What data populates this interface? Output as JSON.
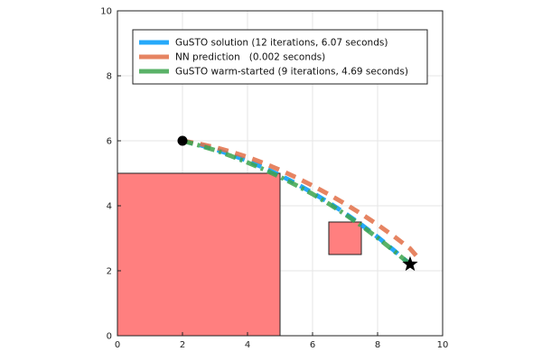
{
  "chart_data": {
    "type": "line",
    "title": "",
    "xlabel": "",
    "ylabel": "",
    "xlim": [
      0,
      10
    ],
    "ylim": [
      0,
      10
    ],
    "xticks": [
      0,
      2,
      4,
      6,
      8,
      10
    ],
    "yticks": [
      0,
      2,
      4,
      6,
      8,
      10
    ],
    "grid": true,
    "legend_position": "top-left",
    "obstacles": [
      {
        "x0": 0,
        "y0": 0,
        "x1": 5,
        "y1": 5,
        "color": "#ff7f7f"
      },
      {
        "x0": 6.5,
        "y0": 2.5,
        "x1": 7.5,
        "y1": 3.5,
        "color": "#ff7f7f"
      }
    ],
    "start": {
      "x": 2,
      "y": 6
    },
    "goal": {
      "x": 9,
      "y": 2.2
    },
    "series": [
      {
        "name": "GuSTO solution (12 iterations, 6.07 seconds)",
        "color": "#009af9",
        "dash": "dash",
        "x": [
          2.0,
          2.5,
          3.0,
          3.5,
          4.0,
          4.5,
          5.0,
          5.5,
          6.0,
          6.5,
          7.0,
          7.5,
          8.0,
          8.5,
          9.0
        ],
        "y": [
          6.0,
          5.88,
          5.74,
          5.57,
          5.38,
          5.17,
          4.94,
          4.68,
          4.4,
          4.1,
          3.77,
          3.42,
          3.04,
          2.63,
          2.2
        ]
      },
      {
        "name": "NN prediction   (0.002 seconds)",
        "color": "#e26f46",
        "dash": "dash",
        "x": [
          2.0,
          2.5,
          3.0,
          3.5,
          4.0,
          4.5,
          5.0,
          5.5,
          6.0,
          6.5,
          7.0,
          7.5,
          8.0,
          8.5,
          9.0,
          9.2
        ],
        "y": [
          6.0,
          5.91,
          5.8,
          5.66,
          5.5,
          5.31,
          5.1,
          4.87,
          4.62,
          4.35,
          4.06,
          3.75,
          3.42,
          3.06,
          2.68,
          2.45
        ]
      },
      {
        "name": "GuSTO warm-started (9 iterations, 4.69 seconds)",
        "color": "#3da44d",
        "dash": "dashdot",
        "x": [
          2.0,
          2.5,
          3.0,
          3.5,
          4.0,
          4.5,
          5.0,
          5.5,
          6.0,
          6.5,
          7.0,
          7.5,
          8.0,
          8.5,
          9.0
        ],
        "y": [
          6.0,
          5.86,
          5.71,
          5.53,
          5.33,
          5.12,
          4.89,
          4.63,
          4.36,
          4.06,
          3.74,
          3.39,
          3.01,
          2.61,
          2.2
        ]
      }
    ]
  }
}
